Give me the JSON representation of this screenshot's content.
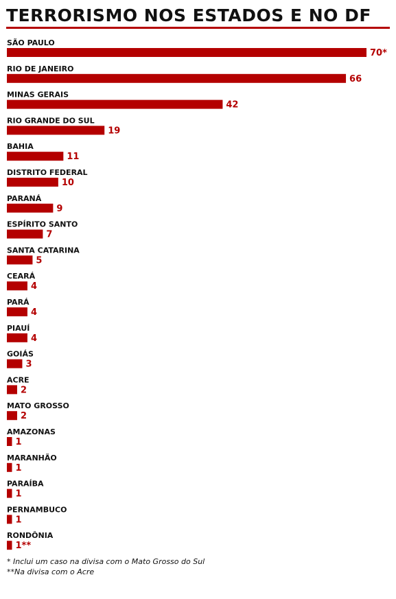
{
  "chart_data": {
    "type": "bar",
    "orientation": "horizontal",
    "title": "TERRORISMO NOS ESTADOS E NO DF",
    "categories": [
      "SÃO PAULO",
      "RIO DE JANEIRO",
      "MINAS GERAIS",
      "RIO GRANDE DO SUL",
      "BAHIA",
      "DISTRITO FEDERAL",
      "PARANÁ",
      "ESPÍRITO SANTO",
      "SANTA CATARINA",
      "CEARÁ",
      "PARÁ",
      "PIAUÍ",
      "GOIÁS",
      "ACRE",
      "MATO GROSSO",
      "AMAZONAS",
      "MARANHÃO",
      "PARAÍBA",
      "PERNAMBUCO",
      "RONDÔNIA"
    ],
    "values": [
      70,
      66,
      42,
      19,
      11,
      10,
      9,
      7,
      5,
      4,
      4,
      4,
      3,
      2,
      2,
      1,
      1,
      1,
      1,
      1
    ],
    "value_labels": [
      "70*",
      "66",
      "42",
      "19",
      "11",
      "10",
      "9",
      "7",
      "5",
      "4",
      "4",
      "4",
      "3",
      "2",
      "2",
      "1",
      "1",
      "1",
      "1",
      "1**"
    ],
    "xlim": [
      0,
      70
    ],
    "grid": false,
    "legend": "none",
    "colors": {
      "bar": "#b40000",
      "value_label": "#b40000",
      "category_label": "#111111",
      "title_rule": "#b40000"
    }
  },
  "footnotes": [
    "* Inclui um caso na divisa com o Mato Grosso do Sul",
    "**Na divisa com o Acre"
  ]
}
